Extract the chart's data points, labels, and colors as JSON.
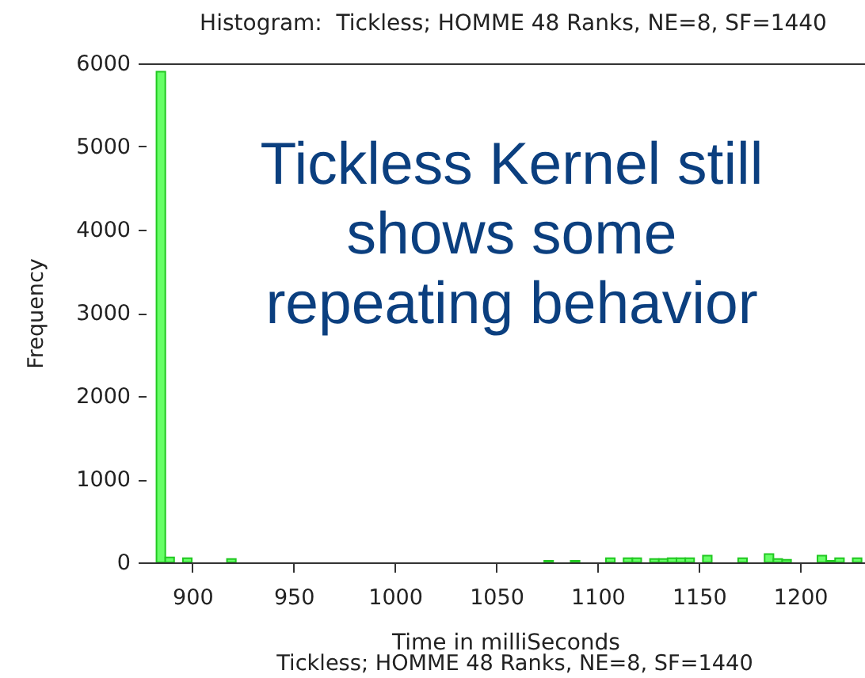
{
  "chart_data": {
    "type": "histogram",
    "title": "Histogram:  Tickless; HOMME 48 Ranks, NE=8, SF=1440",
    "xlabel": "Time in milliSeconds",
    "ylabel": "Frequency",
    "annotations": [
      "Tickless Kernel still\nshows some\nrepeating behavior",
      "Tickless; HOMME 48 Ranks, NE=8, SF=1440"
    ],
    "bins": [
      882.3,
      886.65,
      891.0,
      895.35,
      899.7,
      904.05,
      908.4,
      912.75,
      917.1,
      921.45,
      925.8,
      930.15,
      934.5,
      938.85,
      943.2,
      947.55,
      951.9,
      956.25,
      960.6,
      964.95,
      969.3,
      973.65,
      978.0,
      982.35,
      986.7,
      991.05,
      995.4,
      999.75,
      1004.1,
      1008.45,
      1012.8,
      1017.15,
      1021.5,
      1025.85,
      1030.2,
      1034.55,
      1038.9,
      1043.25,
      1047.6,
      1051.95,
      1056.3,
      1060.65,
      1065.0,
      1069.35,
      1073.7,
      1078.05,
      1082.4,
      1086.75,
      1091.1,
      1095.45,
      1099.8,
      1104.15,
      1108.5,
      1112.85,
      1117.2,
      1121.55,
      1125.9,
      1130.25,
      1134.6,
      1138.95,
      1143.3,
      1147.65,
      1152.0,
      1156.35,
      1160.7,
      1165.05,
      1169.4,
      1173.75,
      1178.1,
      1182.45,
      1186.8,
      1191.15,
      1195.5,
      1199.85,
      1204.2,
      1208.55,
      1212.9,
      1217.25,
      1221.6,
      1225.95,
      1230.3
    ],
    "values": [
      5900,
      60,
      0,
      50,
      0,
      0,
      0,
      0,
      40,
      0,
      0,
      0,
      0,
      0,
      0,
      0,
      0,
      0,
      0,
      0,
      0,
      0,
      0,
      0,
      0,
      0,
      0,
      0,
      0,
      0,
      0,
      0,
      0,
      0,
      0,
      0,
      0,
      0,
      0,
      0,
      0,
      0,
      0,
      0,
      20,
      0,
      0,
      20,
      0,
      0,
      0,
      50,
      0,
      50,
      50,
      0,
      40,
      40,
      50,
      50,
      50,
      0,
      80,
      0,
      0,
      0,
      50,
      0,
      0,
      100,
      40,
      30,
      0,
      0,
      0,
      80,
      20,
      50,
      0,
      50
    ],
    "color": "#66ff66",
    "xlim": [
      877,
      1232
    ],
    "ylim": [
      0,
      6000
    ],
    "xticks": [
      900,
      950,
      1000,
      1050,
      1100,
      1150,
      1200
    ],
    "yticks": [
      0,
      1000,
      2000,
      3000,
      4000,
      5000,
      6000
    ]
  }
}
